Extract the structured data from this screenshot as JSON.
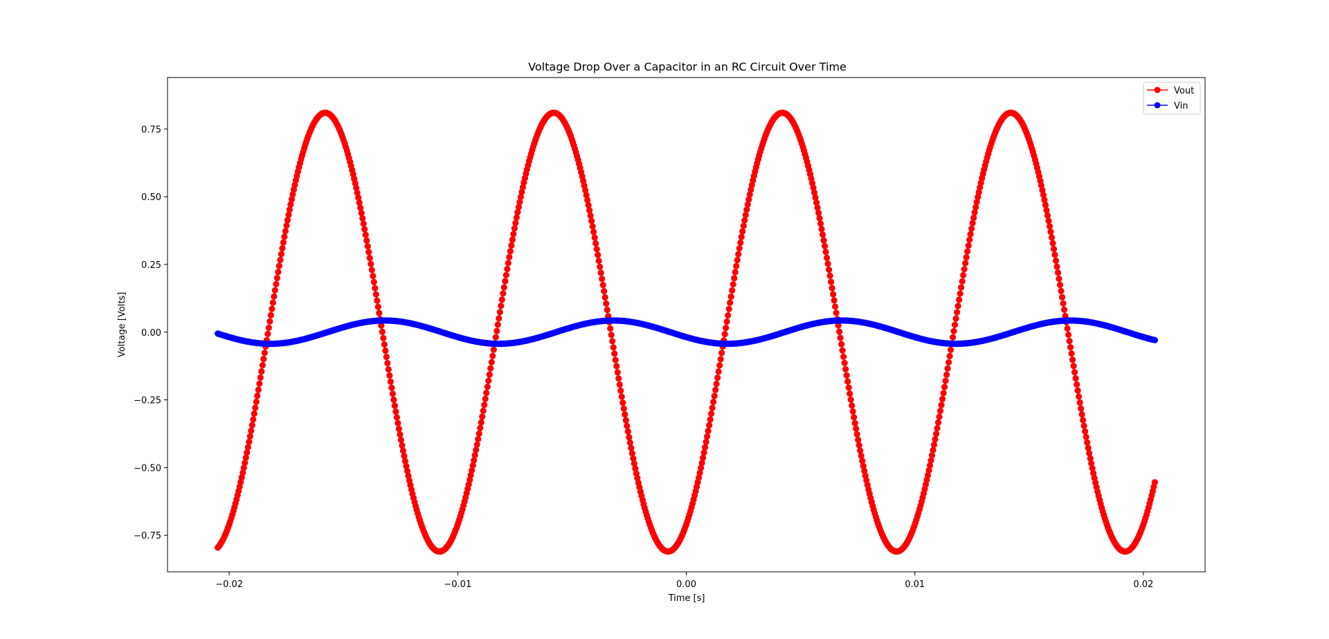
{
  "chart_data": {
    "type": "scatter",
    "title": "Voltage Drop Over a Capacitor in an RC Circuit Over Time",
    "xlabel": "Time [s]",
    "ylabel": "Voltage [Volts]",
    "xlim": [
      -0.0227,
      0.0227
    ],
    "ylim": [
      -0.885,
      0.94
    ],
    "xticks": [
      -0.02,
      -0.01,
      0.0,
      0.01,
      0.02
    ],
    "xtick_labels": [
      "−0.02",
      "−0.01",
      "0.00",
      "0.01",
      "0.02"
    ],
    "yticks": [
      -0.75,
      -0.5,
      -0.25,
      0.0,
      0.25,
      0.5,
      0.75
    ],
    "ytick_labels": [
      "−0.75",
      "−0.50",
      "−0.25",
      "0.00",
      "0.25",
      "0.50",
      "0.75"
    ],
    "grid": false,
    "legend_position": "top-right",
    "x_range": [
      -0.0205,
      0.0205
    ],
    "frequency_hz": 100,
    "series": [
      {
        "name": "Vout",
        "color": "#ff0000",
        "marker": "circle",
        "amplitude": 0.81,
        "peak_times": [
          -0.0158,
          -0.0058,
          0.0042,
          0.0142
        ]
      },
      {
        "name": "Vin",
        "color": "#0000ff",
        "marker": "circle",
        "amplitude": 0.043,
        "peak_times": [
          -0.0132,
          -0.0032,
          0.0068,
          0.0168
        ]
      }
    ]
  }
}
